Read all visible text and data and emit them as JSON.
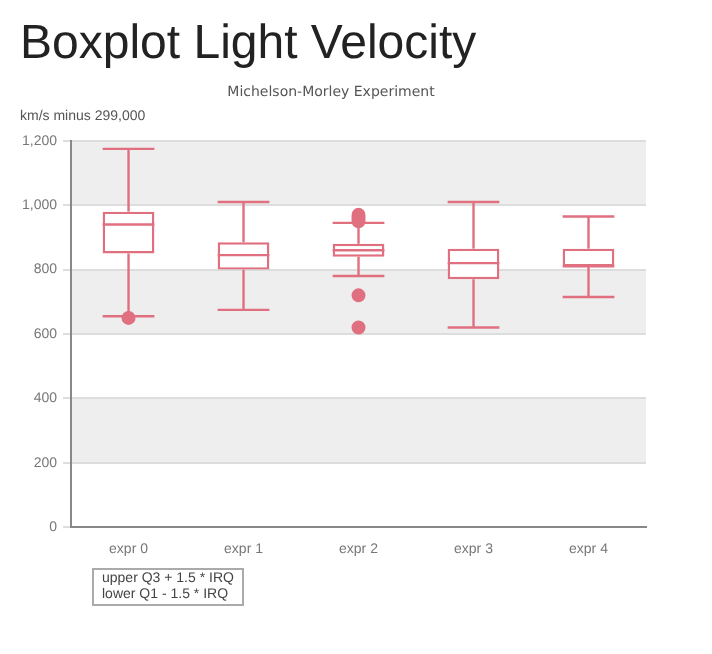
{
  "chart_data": {
    "type": "box",
    "title": "Boxplot Light Velocity",
    "subtitle": "Michelson-Morley Experiment",
    "ylabel": "km/s minus 299,000",
    "categories": [
      "expr 0",
      "expr 1",
      "expr 2",
      "expr 3",
      "expr 4"
    ],
    "boxes": [
      {
        "low": 655,
        "q1": 850,
        "median": 940,
        "q3": 980,
        "high": 1175,
        "outliers": [
          650
        ]
      },
      {
        "low": 675,
        "q1": 800,
        "median": 845,
        "q3": 885,
        "high": 1010
      },
      {
        "low": 780,
        "q1": 840,
        "median": 860,
        "q3": 880,
        "high": 945,
        "outliers": [
          620,
          720,
          950,
          960,
          970
        ]
      },
      {
        "low": 620,
        "q1": 770,
        "median": 820,
        "q3": 865,
        "high": 1010
      },
      {
        "low": 715,
        "q1": 810,
        "median": 810,
        "q3": 865,
        "high": 965
      }
    ],
    "color": "#e07080",
    "ylim": [
      0,
      1200
    ],
    "yticks": [
      {
        "value": 0,
        "label": "0"
      },
      {
        "value": 200,
        "label": "200"
      },
      {
        "value": 400,
        "label": "400"
      },
      {
        "value": 600,
        "label": "600"
      },
      {
        "value": 800,
        "label": "800"
      },
      {
        "value": 1000,
        "label": "1,000"
      },
      {
        "value": 1200,
        "label": "1,200"
      }
    ],
    "bands": [
      {
        "axis": "y",
        "from": 200,
        "to": 400,
        "color": "#eeeeee"
      },
      {
        "axis": "y",
        "from": 600,
        "to": 800,
        "color": "#eeeeee"
      },
      {
        "axis": "y",
        "from": 1000,
        "to": 1200,
        "color": "#eeeeee"
      }
    ],
    "grid": "y",
    "legend": false,
    "annotations": [
      "upper Q3 + 1.5 * IRQ",
      "lower Q1 - 1.5 * IRQ"
    ]
  }
}
